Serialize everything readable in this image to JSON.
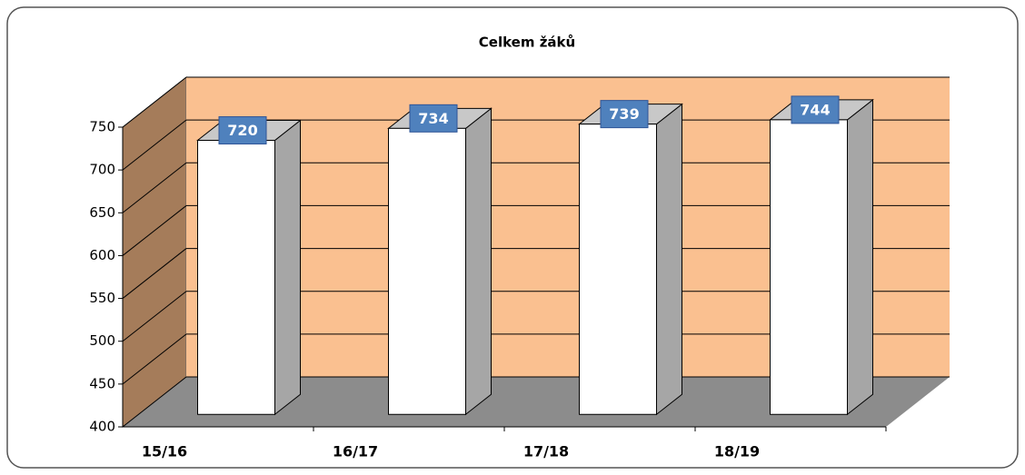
{
  "chart_data": {
    "type": "bar3d",
    "title": "Celkem žáků",
    "categories": [
      "15/16",
      "16/17",
      "17/18",
      "18/19"
    ],
    "values": [
      720,
      734,
      739,
      744
    ],
    "ylim": [
      400,
      750
    ],
    "yticks": [
      400,
      450,
      500,
      550,
      600,
      650,
      700,
      750
    ],
    "grid": true,
    "color": "#ffffff",
    "label_color": "#4f81bd"
  }
}
